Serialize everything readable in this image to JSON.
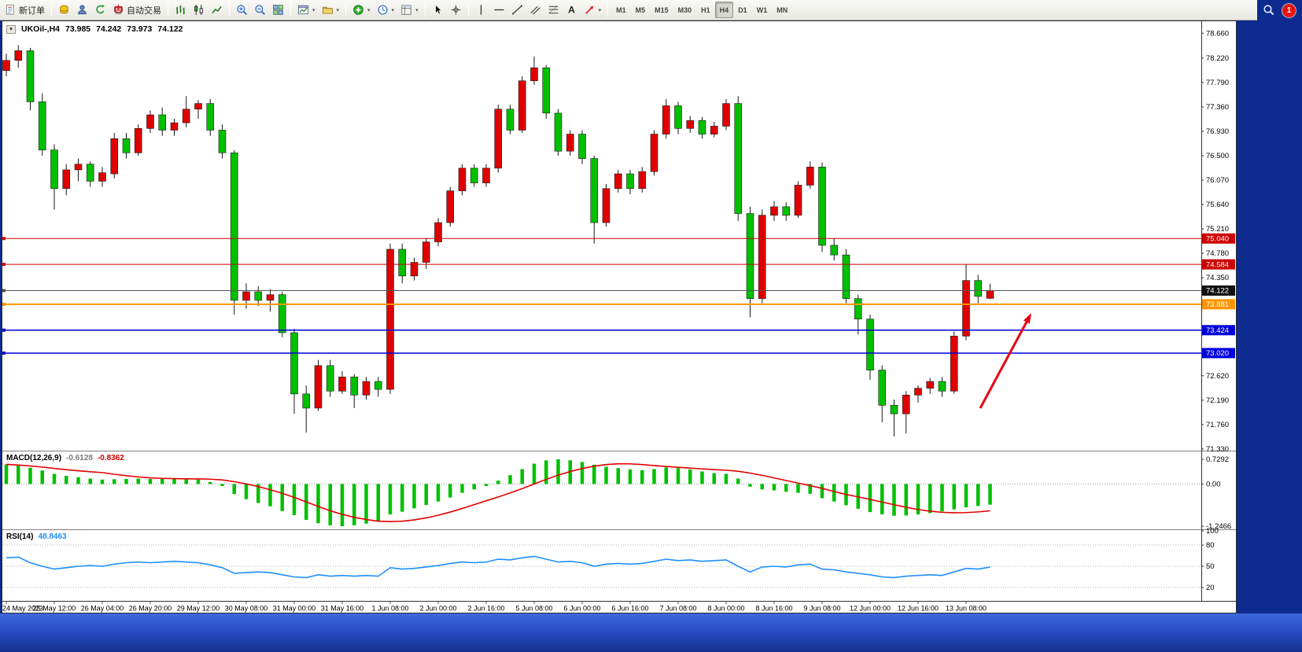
{
  "notifications": {
    "badge": "1"
  },
  "toolbar": {
    "groups": [
      {
        "items": [
          {
            "name": "new-order",
            "icon": "new-order-icon",
            "label": "新订单"
          }
        ]
      },
      {
        "items": [
          {
            "name": "accounts",
            "icon": "accounts-icon"
          },
          {
            "name": "market-watch",
            "icon": "profile-icon"
          },
          {
            "name": "refresh",
            "icon": "refresh-icon"
          },
          {
            "name": "autotrading",
            "icon": "autotrading-icon",
            "label": "自动交易"
          }
        ]
      },
      {
        "items": [
          {
            "name": "bar-chart-mode",
            "icon": "bar-chart-icon"
          },
          {
            "name": "candlestick-mode",
            "icon": "candlestick-icon"
          },
          {
            "name": "line-chart-mode",
            "icon": "line-chart-icon"
          }
        ]
      },
      {
        "items": [
          {
            "name": "zoom-in",
            "icon": "zoom-in-icon"
          },
          {
            "name": "zoom-out",
            "icon": "zoom-out-icon"
          },
          {
            "name": "tile-windows",
            "icon": "tile-windows-icon"
          }
        ]
      },
      {
        "items": [
          {
            "name": "new-chart",
            "icon": "new-chart-icon",
            "caret": true
          },
          {
            "name": "profiles",
            "icon": "profiles-icon",
            "caret": true
          }
        ]
      },
      {
        "items": [
          {
            "name": "indicators",
            "icon": "indicators-icon",
            "caret": true
          },
          {
            "name": "periods",
            "icon": "periods-icon",
            "caret": true
          },
          {
            "name": "templates",
            "icon": "templates-icon",
            "caret": true
          }
        ]
      },
      {
        "items": [
          {
            "name": "cursor",
            "icon": "cursor-icon"
          },
          {
            "name": "crosshair",
            "icon": "crosshair-icon"
          }
        ]
      },
      {
        "items": [
          {
            "name": "vertical-line",
            "icon": "vertical-line-icon"
          },
          {
            "name": "horizontal-line",
            "icon": "horizontal-line-icon"
          },
          {
            "name": "trendline",
            "icon": "trendline-icon"
          },
          {
            "name": "equidistant-channel",
            "icon": "channel-icon"
          },
          {
            "name": "fibonacci",
            "icon": "fibonacci-icon"
          },
          {
            "name": "text-label",
            "icon": "text-icon"
          },
          {
            "name": "arrows",
            "icon": "arrows-icon",
            "caret": true
          }
        ]
      },
      {
        "items": [
          {
            "name": "tf-m1",
            "label": "M1"
          },
          {
            "name": "tf-m5",
            "label": "M5"
          },
          {
            "name": "tf-m15",
            "label": "M15"
          },
          {
            "name": "tf-m30",
            "label": "M30"
          },
          {
            "name": "tf-h1",
            "label": "H1"
          },
          {
            "name": "tf-h4",
            "label": "H4",
            "active": true
          },
          {
            "name": "tf-d1",
            "label": "D1"
          },
          {
            "name": "tf-w1",
            "label": "W1"
          },
          {
            "name": "tf-mn",
            "label": "MN"
          }
        ]
      }
    ]
  },
  "chart_header": {
    "collapse_icon": "▼",
    "symbol_period": "UKOil-,H4",
    "open": "73.985",
    "high": "74.242",
    "low": "73.973",
    "close": "74.122"
  },
  "chart_data": {
    "type": "candlestick",
    "symbol": "UKOil-",
    "timeframe": "H4",
    "price_range": [
      71.3,
      78.87
    ],
    "colors": {
      "bull": "#e00000",
      "bear": "#00c000",
      "wick": "#1a1a1a"
    },
    "candles": [
      [
        78.0,
        78.3,
        77.9,
        78.18
      ],
      [
        78.18,
        78.45,
        78.05,
        78.35
      ],
      [
        78.35,
        78.4,
        77.3,
        77.45
      ],
      [
        77.45,
        77.6,
        76.5,
        76.6
      ],
      [
        76.6,
        76.7,
        75.55,
        75.92
      ],
      [
        75.92,
        76.35,
        75.8,
        76.25
      ],
      [
        76.25,
        76.45,
        76.05,
        76.35
      ],
      [
        76.35,
        76.4,
        75.95,
        76.05
      ],
      [
        76.05,
        76.3,
        75.95,
        76.2
      ],
      [
        76.18,
        76.9,
        76.1,
        76.8
      ],
      [
        76.8,
        76.9,
        76.45,
        76.55
      ],
      [
        76.55,
        77.05,
        76.5,
        76.98
      ],
      [
        76.98,
        77.3,
        76.9,
        77.22
      ],
      [
        77.22,
        77.35,
        76.85,
        76.95
      ],
      [
        76.95,
        77.15,
        76.85,
        77.08
      ],
      [
        77.08,
        77.55,
        77.0,
        77.32
      ],
      [
        77.32,
        77.48,
        77.15,
        77.42
      ],
      [
        77.42,
        77.5,
        76.85,
        76.95
      ],
      [
        76.95,
        77.05,
        76.45,
        76.55
      ],
      [
        76.55,
        76.6,
        73.7,
        73.95
      ],
      [
        73.95,
        74.25,
        73.8,
        74.1
      ],
      [
        74.1,
        74.2,
        73.85,
        73.95
      ],
      [
        73.95,
        74.15,
        73.75,
        74.05
      ],
      [
        74.05,
        74.1,
        73.3,
        73.38
      ],
      [
        73.38,
        73.45,
        71.95,
        72.3
      ],
      [
        72.3,
        72.45,
        71.62,
        72.05
      ],
      [
        72.05,
        72.9,
        72.0,
        72.8
      ],
      [
        72.8,
        72.9,
        72.25,
        72.35
      ],
      [
        72.35,
        72.7,
        72.3,
        72.6
      ],
      [
        72.6,
        72.65,
        72.05,
        72.28
      ],
      [
        72.28,
        72.6,
        72.2,
        72.52
      ],
      [
        72.52,
        72.6,
        72.25,
        72.38
      ],
      [
        72.38,
        74.95,
        72.3,
        74.85
      ],
      [
        74.85,
        74.95,
        74.25,
        74.38
      ],
      [
        74.38,
        74.7,
        74.3,
        74.62
      ],
      [
        74.62,
        75.05,
        74.5,
        74.98
      ],
      [
        74.98,
        75.4,
        74.9,
        75.32
      ],
      [
        75.32,
        75.95,
        75.25,
        75.88
      ],
      [
        75.88,
        76.35,
        75.8,
        76.28
      ],
      [
        76.28,
        76.35,
        75.95,
        76.02
      ],
      [
        76.02,
        76.35,
        75.95,
        76.28
      ],
      [
        76.28,
        77.4,
        76.2,
        77.32
      ],
      [
        77.32,
        77.4,
        76.88,
        76.95
      ],
      [
        76.95,
        77.9,
        76.9,
        77.82
      ],
      [
        77.82,
        78.25,
        77.75,
        78.05
      ],
      [
        78.05,
        78.1,
        77.15,
        77.25
      ],
      [
        77.25,
        77.32,
        76.5,
        76.58
      ],
      [
        76.58,
        76.95,
        76.5,
        76.88
      ],
      [
        76.88,
        76.95,
        76.35,
        76.45
      ],
      [
        76.45,
        76.5,
        74.95,
        75.32
      ],
      [
        75.32,
        76.0,
        75.25,
        75.92
      ],
      [
        75.92,
        76.25,
        75.85,
        76.18
      ],
      [
        76.18,
        76.25,
        75.82,
        75.92
      ],
      [
        75.92,
        76.3,
        75.85,
        76.22
      ],
      [
        76.22,
        76.95,
        76.15,
        76.88
      ],
      [
        76.88,
        77.5,
        76.8,
        77.38
      ],
      [
        77.38,
        77.45,
        76.88,
        76.98
      ],
      [
        76.98,
        77.2,
        76.9,
        77.12
      ],
      [
        77.12,
        77.18,
        76.8,
        76.88
      ],
      [
        76.88,
        77.1,
        76.82,
        77.02
      ],
      [
        77.02,
        77.5,
        76.95,
        77.42
      ],
      [
        77.42,
        77.55,
        75.35,
        75.48
      ],
      [
        75.48,
        75.6,
        73.65,
        73.98
      ],
      [
        73.98,
        75.55,
        73.9,
        75.45
      ],
      [
        75.45,
        75.7,
        75.35,
        75.6
      ],
      [
        75.6,
        75.68,
        75.35,
        75.45
      ],
      [
        75.45,
        76.05,
        75.4,
        75.98
      ],
      [
        75.98,
        76.4,
        75.92,
        76.3
      ],
      [
        76.3,
        76.38,
        74.8,
        74.92
      ],
      [
        74.92,
        75.05,
        74.65,
        74.75
      ],
      [
        74.75,
        74.85,
        73.9,
        73.98
      ],
      [
        73.98,
        74.05,
        73.35,
        73.62
      ],
      [
        73.62,
        73.7,
        72.55,
        72.72
      ],
      [
        72.72,
        72.8,
        71.8,
        72.1
      ],
      [
        72.1,
        72.2,
        71.55,
        71.95
      ],
      [
        71.95,
        72.35,
        71.6,
        72.28
      ],
      [
        72.28,
        72.45,
        72.15,
        72.4
      ],
      [
        72.4,
        72.58,
        72.3,
        72.52
      ],
      [
        72.52,
        72.6,
        72.25,
        72.35
      ],
      [
        72.35,
        73.4,
        72.3,
        73.32
      ],
      [
        73.32,
        74.58,
        73.25,
        74.3
      ],
      [
        74.3,
        74.4,
        73.9,
        74.02
      ],
      [
        73.985,
        74.242,
        73.973,
        74.122
      ]
    ],
    "time_labels": [
      "24 May 2023",
      "25 May 12:00",
      "26 May 04:00",
      "26 May 20:00",
      "29 May 12:00",
      "30 May 08:00",
      "31 May 00:00",
      "31 May 16:00",
      "1 Jun 08:00",
      "2 Jun 00:00",
      "2 Jun 16:00",
      "5 Jun 08:00",
      "6 Jun 00:00",
      "6 Jun 16:00",
      "7 Jun 08:00",
      "8 Jun 00:00",
      "8 Jun 16:00",
      "9 Jun 08:00",
      "12 Jun 00:00",
      "12 Jun 16:00",
      "13 Jun 08:00"
    ],
    "label_every": 4,
    "price_axis": {
      "ticks": [
        {
          "label": "78.660",
          "value": 78.66
        },
        {
          "label": "78.220",
          "value": 78.22
        },
        {
          "label": "77.790",
          "value": 77.79
        },
        {
          "label": "77.360",
          "value": 77.36
        },
        {
          "label": "76.930",
          "value": 76.93
        },
        {
          "label": "76.500",
          "value": 76.5
        },
        {
          "label": "76.070",
          "value": 76.07
        },
        {
          "label": "75.640",
          "value": 75.64
        },
        {
          "label": "75.210",
          "value": 75.21
        },
        {
          "label": "74.780",
          "value": 74.78
        },
        {
          "label": "74.350",
          "value": 74.35
        },
        {
          "label": "72.620",
          "value": 72.62
        },
        {
          "label": "72.190",
          "value": 72.19
        },
        {
          "label": "71.760",
          "value": 71.76
        },
        {
          "label": "71.330",
          "value": 71.33
        }
      ]
    },
    "levels": [
      {
        "label": "75.040",
        "price": 75.04,
        "line": "#cc0000",
        "width": 1,
        "badge": "#cc0000",
        "fg": "#ffffff"
      },
      {
        "label": "74.584",
        "price": 74.584,
        "line": "#cc0000",
        "width": 1,
        "badge": "#cc0000",
        "fg": "#ffffff"
      },
      {
        "label": "74.122",
        "price": 74.122,
        "line": "#555555",
        "width": 1,
        "badge": "#111111",
        "fg": "#ffffff"
      },
      {
        "label": "73.881",
        "price": 73.881,
        "line": "#ff9500",
        "width": 2,
        "badge": "#ff9500",
        "fg": "#ffffff"
      },
      {
        "label": "73.424",
        "price": 73.424,
        "line": "#0000dd",
        "width": 1.5,
        "badge": "#0000dd",
        "fg": "#ffffff"
      },
      {
        "label": "73.020",
        "price": 73.02,
        "line": "#0000dd",
        "width": 1.5,
        "badge": "#0000dd",
        "fg": "#ffffff"
      }
    ],
    "indicators": {
      "macd": {
        "label": "MACD(12,26,9)",
        "value_main": "-0.6128",
        "value_signal": "-0.8362",
        "max": 0.7292,
        "min": -1.2466,
        "histogram_color": "#00c000",
        "signal_color": "#e60000",
        "axis": [
          {
            "label": "0.7292",
            "value": 0.7292
          },
          {
            "label": "0.00",
            "value": 0
          },
          {
            "label": "-1.2466",
            "value": -1.2466
          }
        ],
        "values": [
          0.58,
          0.54,
          0.48,
          0.4,
          0.3,
          0.24,
          0.2,
          0.16,
          0.13,
          0.14,
          0.15,
          0.16,
          0.15,
          0.16,
          0.17,
          0.16,
          0.13,
          0.06,
          -0.06,
          -0.3,
          -0.45,
          -0.56,
          -0.66,
          -0.8,
          -0.92,
          -1.06,
          -1.16,
          -1.22,
          -1.2466,
          -1.22,
          -1.17,
          -1.1,
          -0.9,
          -0.82,
          -0.72,
          -0.62,
          -0.52,
          -0.4,
          -0.26,
          -0.16,
          -0.06,
          0.1,
          0.26,
          0.44,
          0.6,
          0.7,
          0.7292,
          0.7,
          0.65,
          0.57,
          0.51,
          0.47,
          0.43,
          0.41,
          0.44,
          0.49,
          0.47,
          0.43,
          0.37,
          0.32,
          0.3,
          0.16,
          -0.08,
          -0.16,
          -0.19,
          -0.23,
          -0.26,
          -0.29,
          -0.42,
          -0.52,
          -0.63,
          -0.73,
          -0.83,
          -0.9,
          -0.94,
          -0.93,
          -0.9,
          -0.86,
          -0.81,
          -0.75,
          -0.69,
          -0.65,
          -0.6128
        ]
      },
      "rsi": {
        "label": "RSI(14)",
        "value": "48.8463",
        "color": "#1e90ff",
        "range": [
          0,
          100
        ],
        "levels": [
          80,
          50,
          20
        ],
        "axis": [
          {
            "label": "100",
            "value": 100
          },
          {
            "label": "80",
            "value": 80
          },
          {
            "label": "50",
            "value": 50
          },
          {
            "label": "20",
            "value": 20
          }
        ],
        "values": [
          62,
          63,
          55,
          50,
          46,
          48,
          50,
          51,
          50,
          53,
          55,
          56,
          55,
          56,
          57,
          56,
          55,
          52,
          48,
          40,
          41,
          42,
          41,
          38,
          35,
          34,
          38,
          36,
          37,
          36,
          37,
          36,
          48,
          46,
          47,
          49,
          51,
          54,
          56,
          55,
          56,
          60,
          59,
          62,
          64,
          60,
          56,
          57,
          55,
          50,
          53,
          54,
          53,
          54,
          57,
          60,
          58,
          59,
          57,
          58,
          59,
          50,
          42,
          49,
          50,
          49,
          52,
          53,
          46,
          45,
          42,
          40,
          38,
          35,
          34,
          36,
          37,
          38,
          37,
          42,
          47,
          46,
          48.8463
        ]
      }
    },
    "annotation_arrow": {
      "from": [
        1243,
        492
      ],
      "to": [
        1308,
        371
      ],
      "color": "#e60012"
    }
  }
}
